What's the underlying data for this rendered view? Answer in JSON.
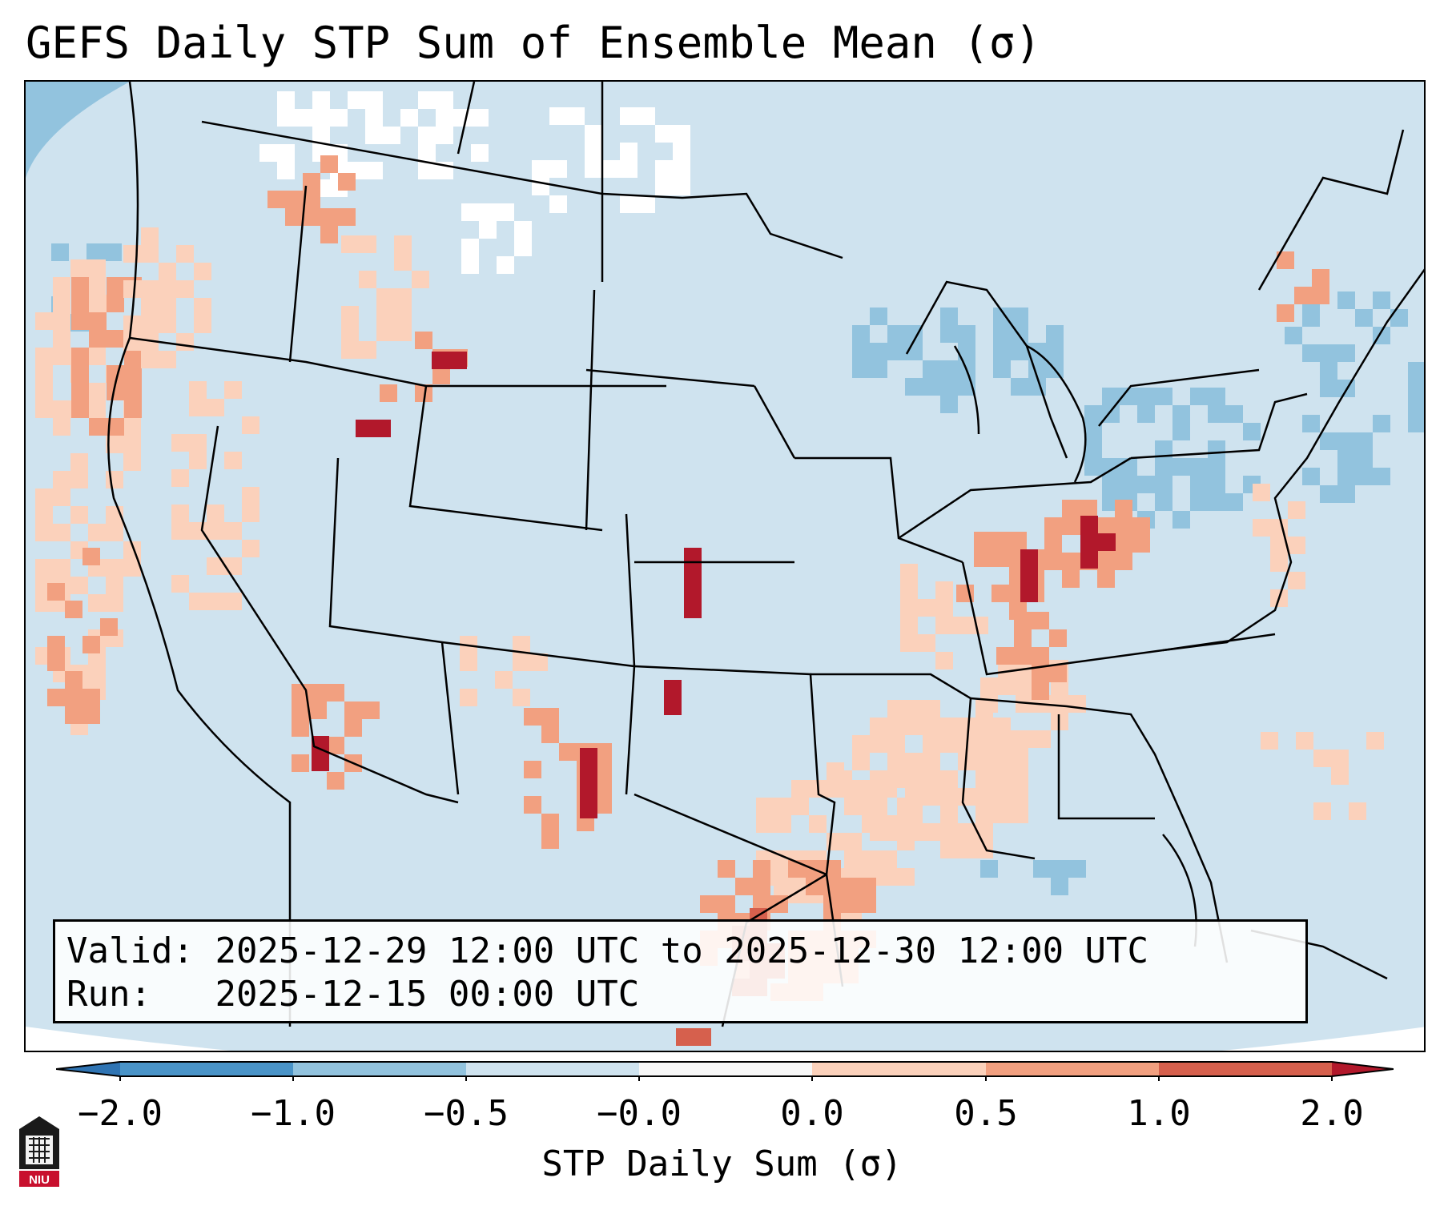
{
  "title": "GEFS Daily STP Sum of Ensemble Mean (σ)",
  "info": {
    "valid_label": "Valid:",
    "valid_value": "2025-12-29 12:00 UTC to 2025-12-30 12:00 UTC",
    "run_label": "Run:",
    "run_value": "2025-12-15 00:00 UTC"
  },
  "colorbar": {
    "label": "STP Daily Sum (σ)",
    "ticks": [
      "−2.0",
      "−1.0",
      "−0.5",
      "−0.0",
      "0.0",
      "0.5",
      "1.0",
      "2.0"
    ],
    "colors": {
      "below": "#2f74b3",
      "b1": "#4a94c8",
      "b2": "#92c3de",
      "b3": "#cfe3ef",
      "b4": "#f7f7f7",
      "b5": "#fbd1bb",
      "b6": "#f2a080",
      "b7": "#d6604d",
      "above": "#b2182b"
    }
  },
  "map_colors": {
    "background": "#cfe3ef",
    "blue_light": "#92c3de",
    "white": "#ffffff",
    "peach": "#fbd1bb",
    "salmon": "#f2a080",
    "red": "#d6604d",
    "dark_red": "#b2182b"
  },
  "logo_text": "NIU"
}
